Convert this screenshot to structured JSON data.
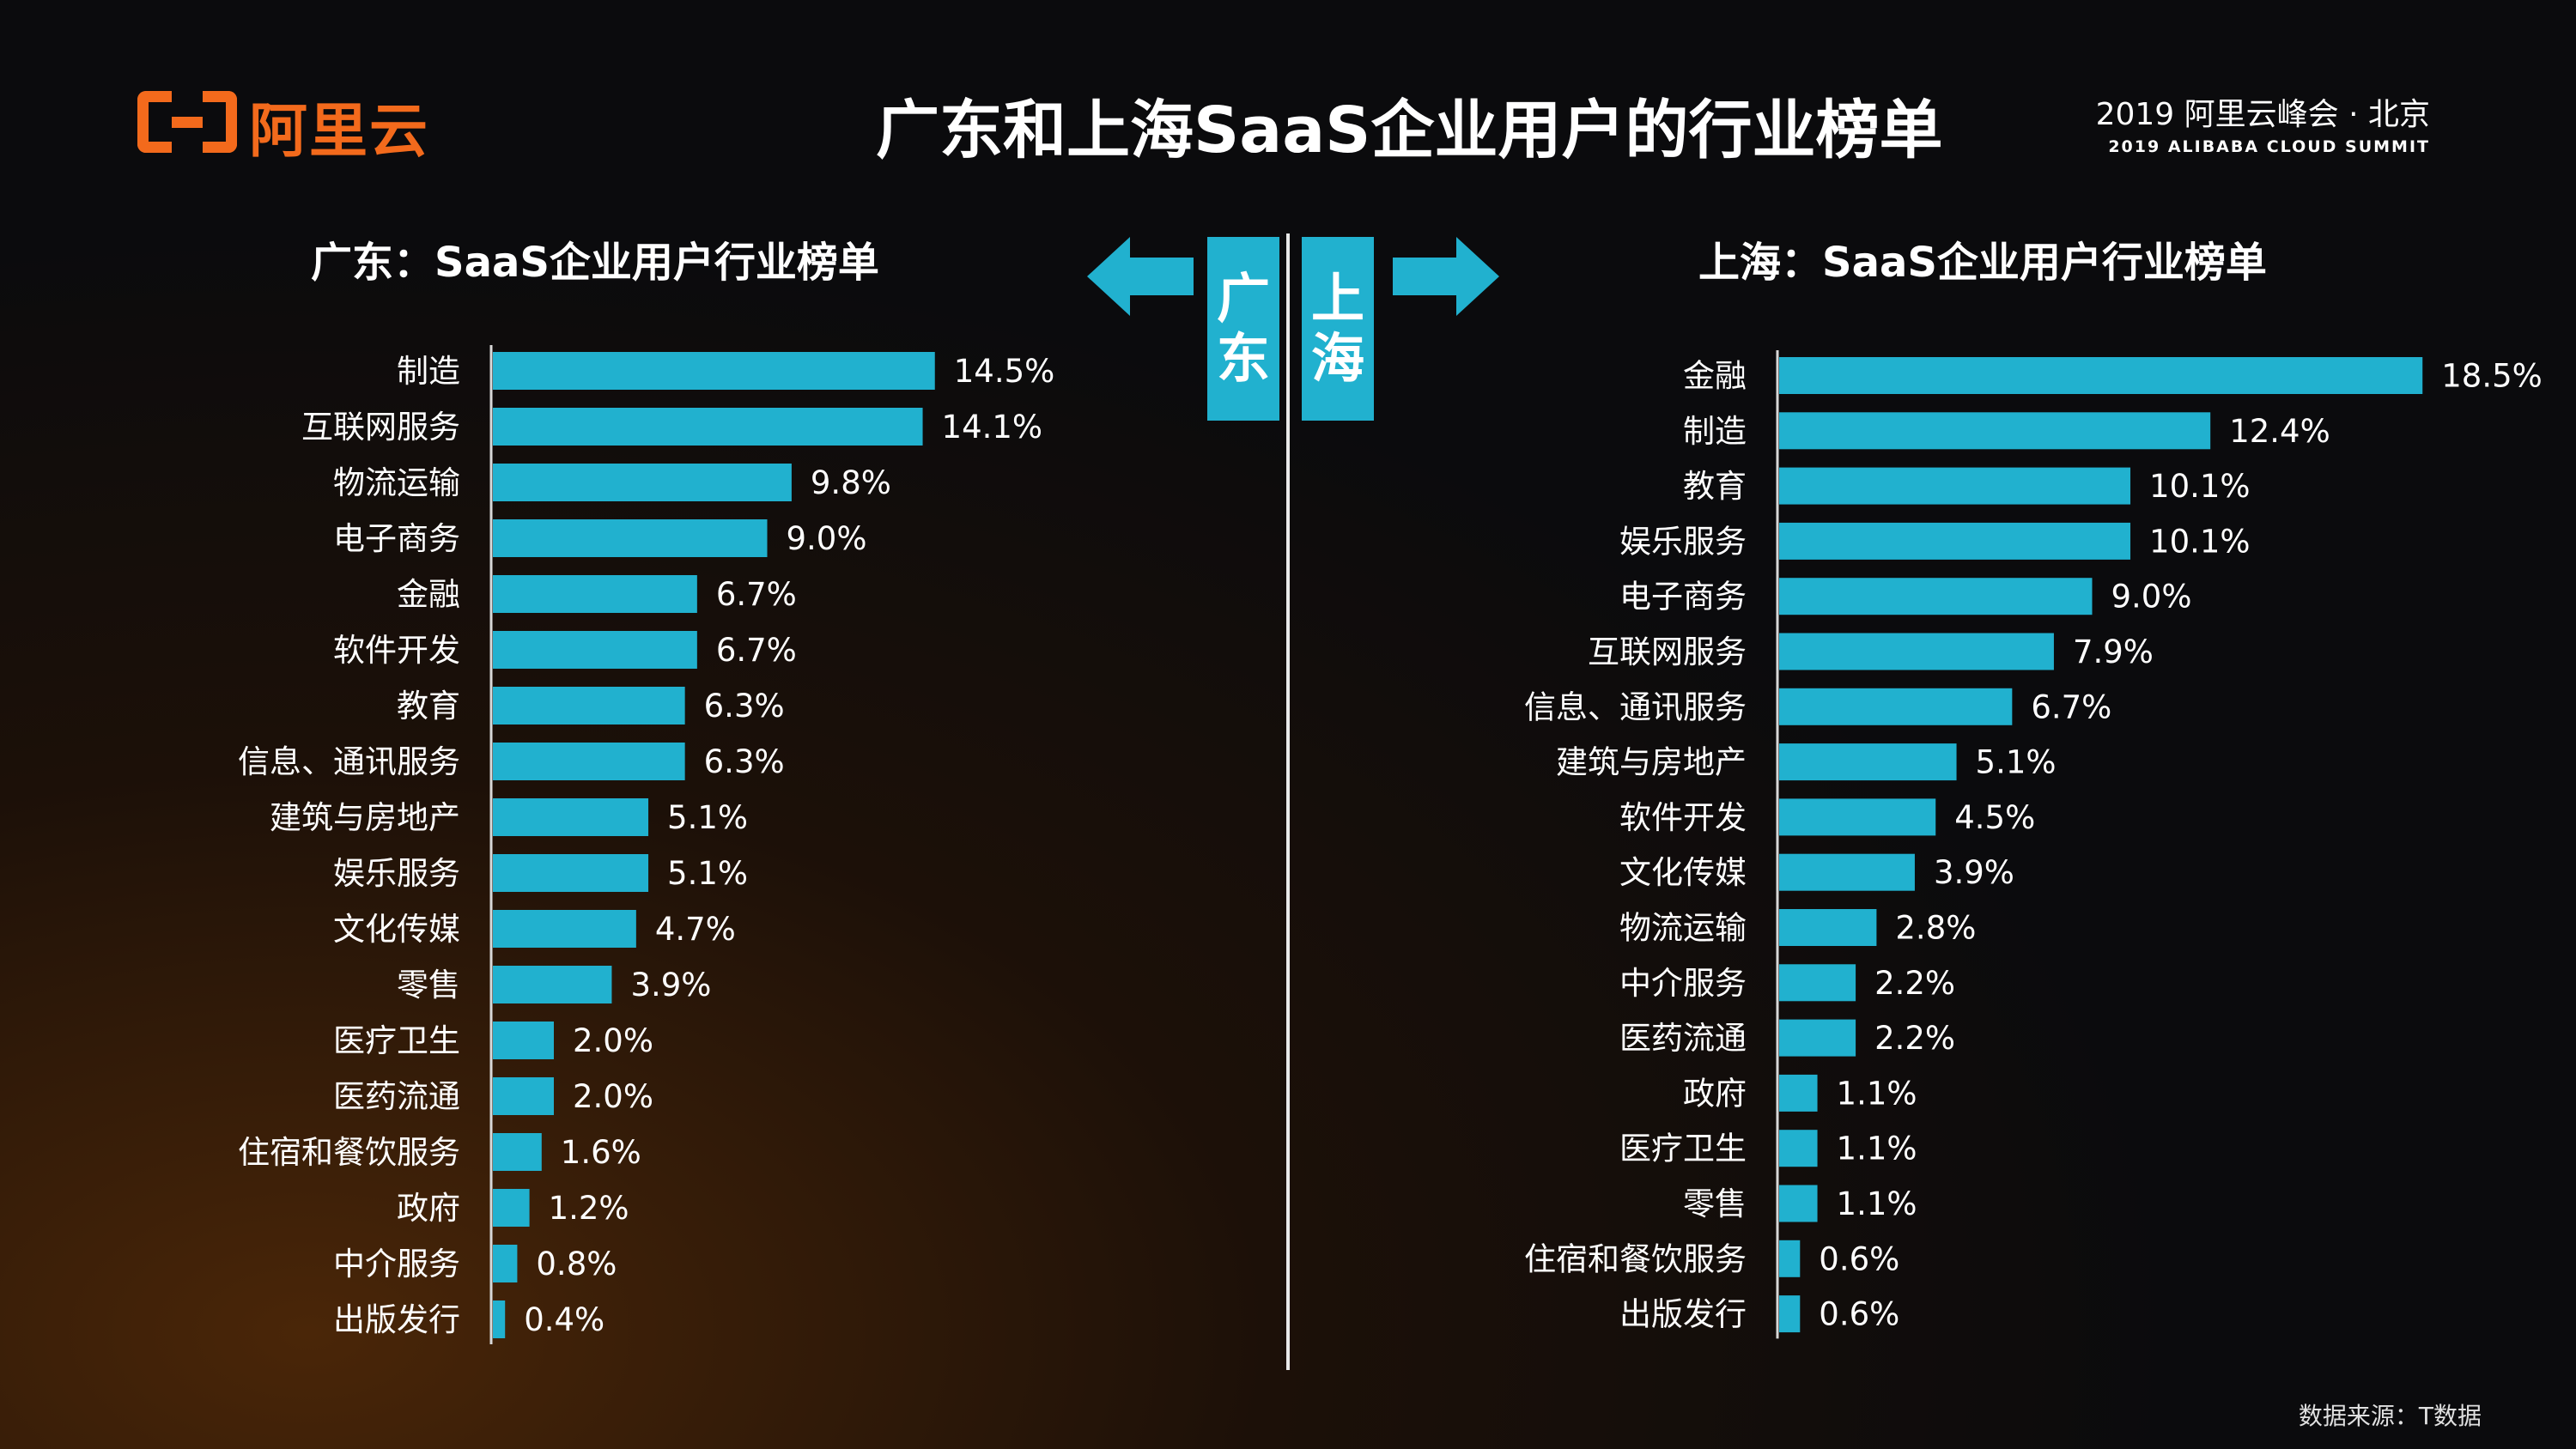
{
  "header": {
    "logo_text": "阿里云",
    "title": "广东和上海SaaS企业用户的行业榜单",
    "summit_line1": "2019 阿里云峰会 · 北京",
    "summit_line2": "2019 ALIBABA CLOUD SUMMIT"
  },
  "tags": {
    "left": [
      "广",
      "东"
    ],
    "right": [
      "上",
      "海"
    ]
  },
  "source": "数据来源：T数据",
  "colors": {
    "bar": "#21b1cf",
    "accent": "#f36a1c",
    "background": "#0b0b0d"
  },
  "chart_data": [
    {
      "type": "bar",
      "orientation": "horizontal",
      "title": "广东：SaaS企业用户行业榜单",
      "categories": [
        "制造",
        "互联网服务",
        "物流运输",
        "电子商务",
        "金融",
        "软件开发",
        "教育",
        "信息、通讯服务",
        "建筑与房地产",
        "娱乐服务",
        "文化传媒",
        "零售",
        "医疗卫生",
        "医药流通",
        "住宿和餐饮服务",
        "政府",
        "中介服务",
        "出版发行"
      ],
      "values": [
        14.5,
        14.1,
        9.8,
        9.0,
        6.7,
        6.7,
        6.3,
        6.3,
        5.1,
        5.1,
        4.7,
        3.9,
        2.0,
        2.0,
        1.6,
        1.2,
        0.8,
        0.4
      ],
      "labels": [
        "14.5%",
        "14.1%",
        "9.8%",
        "9.0%",
        "6.7%",
        "6.7%",
        "6.3%",
        "6.3%",
        "5.1%",
        "5.1%",
        "4.7%",
        "3.9%",
        "2.0%",
        "2.0%",
        "1.6%",
        "1.2%",
        "0.8%",
        "0.4%"
      ],
      "unit": "%"
    },
    {
      "type": "bar",
      "orientation": "horizontal",
      "title": "上海：SaaS企业用户行业榜单",
      "categories": [
        "金融",
        "制造",
        "教育",
        "娱乐服务",
        "电子商务",
        "互联网服务",
        "信息、通讯服务",
        "建筑与房地产",
        "软件开发",
        "文化传媒",
        "物流运输",
        "中介服务",
        "医药流通",
        "政府",
        "医疗卫生",
        "零售",
        "住宿和餐饮服务",
        "出版发行"
      ],
      "values": [
        18.5,
        12.4,
        10.1,
        10.1,
        9.0,
        7.9,
        6.7,
        5.1,
        4.5,
        3.9,
        2.8,
        2.2,
        2.2,
        1.1,
        1.1,
        1.1,
        0.6,
        0.6
      ],
      "labels": [
        "18.5%",
        "12.4%",
        "10.1%",
        "10.1%",
        "9.0%",
        "7.9%",
        "6.7%",
        "5.1%",
        "4.5%",
        "3.9%",
        "2.8%",
        "2.2%",
        "2.2%",
        "1.1%",
        "1.1%",
        "1.1%",
        "0.6%",
        "0.6%"
      ],
      "unit": "%"
    }
  ]
}
